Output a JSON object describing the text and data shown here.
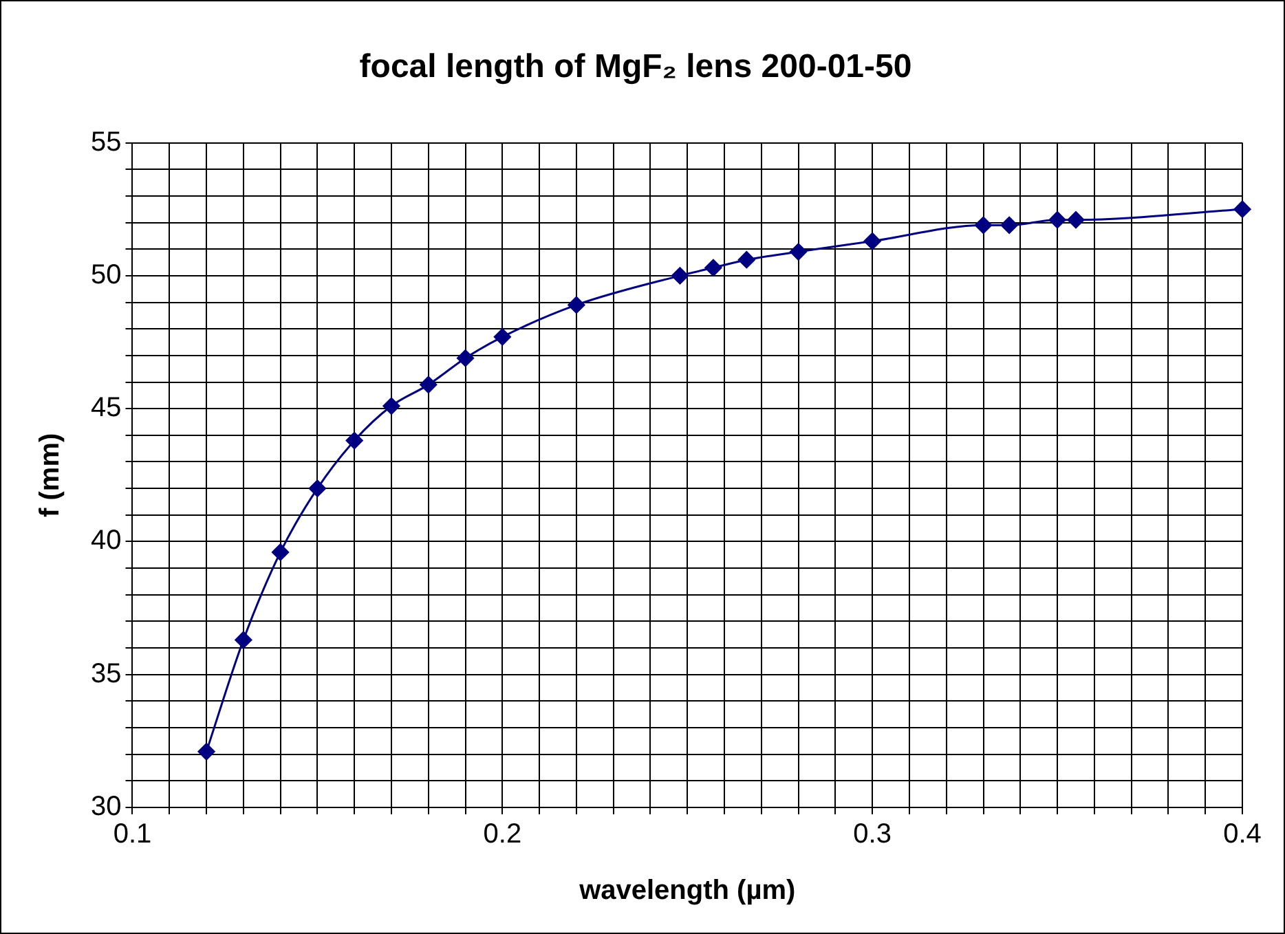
{
  "chart_data": {
    "type": "line",
    "title": "focal length of MgF₂ lens 200-01-50",
    "xlabel": "wavelength (µm)",
    "ylabel": "f (mm)",
    "x": [
      0.12,
      0.13,
      0.14,
      0.15,
      0.16,
      0.17,
      0.18,
      0.19,
      0.2,
      0.22,
      0.248,
      0.257,
      0.266,
      0.28,
      0.3,
      0.33,
      0.337,
      0.35,
      0.355,
      0.4
    ],
    "series": [
      {
        "color": "#000080",
        "values": [
          32.1,
          36.3,
          39.6,
          42.0,
          43.8,
          45.1,
          45.9,
          46.9,
          47.7,
          48.9,
          50.0,
          50.3,
          50.6,
          50.9,
          51.3,
          51.9,
          51.9,
          52.1,
          52.1,
          52.5
        ]
      }
    ],
    "xlim": [
      0.1,
      0.4
    ],
    "ylim": [
      30,
      55
    ],
    "xticks": [
      0.1,
      {
        "value": 0.11,
        "label": null
      },
      {
        "value": 0.12,
        "label": null
      },
      {
        "value": 0.13,
        "label": null
      },
      {
        "value": 0.14,
        "label": null
      },
      {
        "value": 0.15,
        "label": null
      },
      {
        "value": 0.16,
        "label": null
      },
      {
        "value": 0.17,
        "label": null
      },
      {
        "value": 0.18,
        "label": null
      },
      {
        "value": 0.19,
        "label": null
      },
      0.2,
      {
        "value": 0.21,
        "label": null
      },
      {
        "value": 0.22,
        "label": null
      },
      {
        "value": 0.23,
        "label": null
      },
      {
        "value": 0.24,
        "label": null
      },
      {
        "value": 0.25,
        "label": null
      },
      {
        "value": 0.26,
        "label": null
      },
      {
        "value": 0.27,
        "label": null
      },
      {
        "value": 0.28,
        "label": null
      },
      {
        "value": 0.29,
        "label": null
      },
      0.3,
      {
        "value": 0.31,
        "label": null
      },
      {
        "value": 0.32,
        "label": null
      },
      {
        "value": 0.33,
        "label": null
      },
      {
        "value": 0.34,
        "label": null
      },
      {
        "value": 0.35,
        "label": null
      },
      {
        "value": 0.36,
        "label": null
      },
      {
        "value": 0.37,
        "label": null
      },
      {
        "value": 0.38,
        "label": null
      },
      {
        "value": 0.39,
        "label": null
      },
      0.4
    ],
    "yticks": [
      30,
      {
        "value": 31,
        "label": null
      },
      {
        "value": 32,
        "label": null
      },
      {
        "value": 33,
        "label": null
      },
      {
        "value": 34,
        "label": null
      },
      35,
      {
        "value": 36,
        "label": null
      },
      {
        "value": 37,
        "label": null
      },
      {
        "value": 38,
        "label": null
      },
      {
        "value": 39,
        "label": null
      },
      40,
      {
        "value": 41,
        "label": null
      },
      {
        "value": 42,
        "label": null
      },
      {
        "value": 43,
        "label": null
      },
      {
        "value": 44,
        "label": null
      },
      45,
      {
        "value": 46,
        "label": null
      },
      {
        "value": 47,
        "label": null
      },
      {
        "value": 48,
        "label": null
      },
      {
        "value": 49,
        "label": null
      },
      50,
      {
        "value": 51,
        "label": null
      },
      {
        "value": 52,
        "label": null
      },
      {
        "value": 53,
        "label": null
      },
      {
        "value": 54,
        "label": null
      },
      55
    ],
    "grid": true,
    "legend": false,
    "marker": "diamond",
    "line_style": "solid"
  }
}
